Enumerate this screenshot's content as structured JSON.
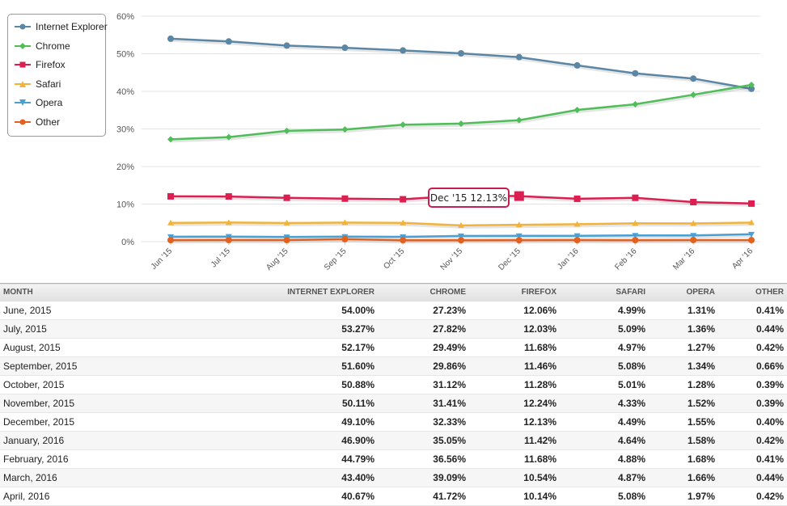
{
  "chart_data": {
    "type": "line",
    "categories": [
      "Jun '15",
      "Jul '15",
      "Aug '15",
      "Sep '15",
      "Oct '15",
      "Nov '15",
      "Dec '15",
      "Jan '16",
      "Feb '16",
      "Mar '16",
      "Apr '16"
    ],
    "y_ticks": [
      "0%",
      "10%",
      "20%",
      "30%",
      "40%",
      "50%",
      "60%"
    ],
    "ylim": [
      0,
      60
    ],
    "grid": true,
    "legend_position": "top-left",
    "series": [
      {
        "name": "Internet Explorer",
        "color": "#5b87a5",
        "marker": "circle",
        "values": [
          54.0,
          53.27,
          52.17,
          51.6,
          50.88,
          50.11,
          49.1,
          46.9,
          44.79,
          43.4,
          40.67
        ]
      },
      {
        "name": "Chrome",
        "color": "#4fbe59",
        "marker": "diamond",
        "values": [
          27.23,
          27.82,
          29.49,
          29.86,
          31.12,
          31.41,
          32.33,
          35.05,
          36.56,
          39.09,
          41.72
        ]
      },
      {
        "name": "Firefox",
        "color": "#dc1e50",
        "marker": "square",
        "values": [
          12.06,
          12.03,
          11.68,
          11.46,
          11.28,
          12.24,
          12.13,
          11.42,
          11.68,
          10.54,
          10.14
        ]
      },
      {
        "name": "Safari",
        "color": "#f2b33d",
        "marker": "triangle",
        "values": [
          4.99,
          5.09,
          4.97,
          5.08,
          5.01,
          4.33,
          4.49,
          4.64,
          4.88,
          4.87,
          5.08
        ]
      },
      {
        "name": "Opera",
        "color": "#4aa0d3",
        "marker": "triangle-down",
        "values": [
          1.31,
          1.36,
          1.27,
          1.34,
          1.28,
          1.52,
          1.55,
          1.58,
          1.68,
          1.66,
          1.97
        ]
      },
      {
        "name": "Other",
        "color": "#e3611f",
        "marker": "circle",
        "values": [
          0.41,
          0.44,
          0.42,
          0.66,
          0.39,
          0.39,
          0.4,
          0.42,
          0.41,
          0.44,
          0.42
        ]
      }
    ],
    "tooltip": {
      "text": "Dec '15 12.13%",
      "series": "Firefox",
      "category": "Dec '15"
    }
  },
  "table": {
    "headers": [
      "MONTH",
      "INTERNET EXPLORER",
      "CHROME",
      "FIREFOX",
      "SAFARI",
      "OPERA",
      "OTHER"
    ],
    "rows": [
      [
        "June, 2015",
        "54.00%",
        "27.23%",
        "12.06%",
        "4.99%",
        "1.31%",
        "0.41%"
      ],
      [
        "July, 2015",
        "53.27%",
        "27.82%",
        "12.03%",
        "5.09%",
        "1.36%",
        "0.44%"
      ],
      [
        "August, 2015",
        "52.17%",
        "29.49%",
        "11.68%",
        "4.97%",
        "1.27%",
        "0.42%"
      ],
      [
        "September, 2015",
        "51.60%",
        "29.86%",
        "11.46%",
        "5.08%",
        "1.34%",
        "0.66%"
      ],
      [
        "October, 2015",
        "50.88%",
        "31.12%",
        "11.28%",
        "5.01%",
        "1.28%",
        "0.39%"
      ],
      [
        "November, 2015",
        "50.11%",
        "31.41%",
        "12.24%",
        "4.33%",
        "1.52%",
        "0.39%"
      ],
      [
        "December, 2015",
        "49.10%",
        "32.33%",
        "12.13%",
        "4.49%",
        "1.55%",
        "0.40%"
      ],
      [
        "January, 2016",
        "46.90%",
        "35.05%",
        "11.42%",
        "4.64%",
        "1.58%",
        "0.42%"
      ],
      [
        "February, 2016",
        "44.79%",
        "36.56%",
        "11.68%",
        "4.88%",
        "1.68%",
        "0.41%"
      ],
      [
        "March, 2016",
        "43.40%",
        "39.09%",
        "10.54%",
        "4.87%",
        "1.66%",
        "0.44%"
      ],
      [
        "April, 2016",
        "40.67%",
        "41.72%",
        "10.14%",
        "5.08%",
        "1.97%",
        "0.42%"
      ]
    ]
  }
}
